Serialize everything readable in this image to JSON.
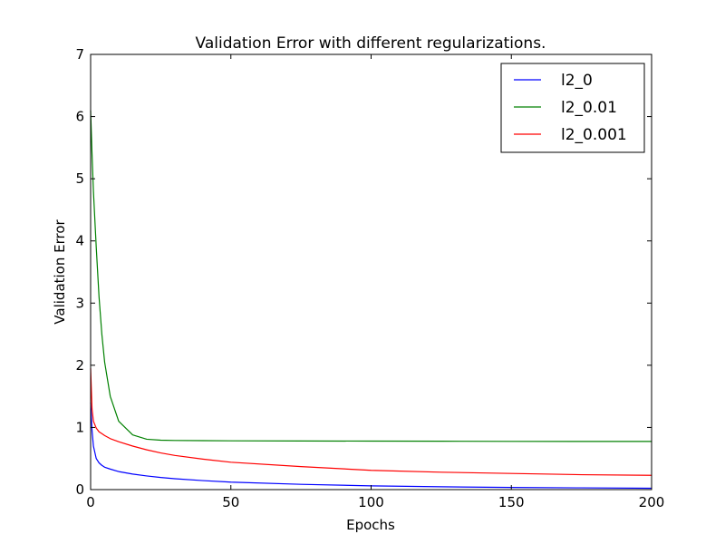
{
  "chart_data": {
    "type": "line",
    "title": "Validation Error with different regularizations.",
    "xlabel": "Epochs",
    "ylabel": "Validation Error",
    "xlim": [
      0,
      200
    ],
    "ylim": [
      0,
      7
    ],
    "xticks": [
      0,
      50,
      100,
      150,
      200
    ],
    "yticks": [
      0,
      1,
      2,
      3,
      4,
      5,
      6,
      7
    ],
    "grid": false,
    "legend_position": "top-right",
    "x": [
      0,
      0.5,
      1,
      2,
      3,
      4,
      5,
      7,
      10,
      15,
      20,
      25,
      30,
      40,
      50,
      75,
      100,
      125,
      150,
      175,
      200
    ],
    "series": [
      {
        "name": "l2_0",
        "color": "#0000ff",
        "values": [
          1.4,
          0.95,
          0.7,
          0.5,
          0.43,
          0.39,
          0.36,
          0.33,
          0.29,
          0.25,
          0.22,
          0.195,
          0.175,
          0.145,
          0.12,
          0.085,
          0.06,
          0.045,
          0.035,
          0.028,
          0.022
        ]
      },
      {
        "name": "l2_0.01",
        "color": "#008000",
        "values": [
          6.1,
          5.4,
          4.8,
          3.9,
          3.1,
          2.5,
          2.05,
          1.5,
          1.1,
          0.88,
          0.81,
          0.795,
          0.79,
          0.787,
          0.785,
          0.782,
          0.78,
          0.778,
          0.776,
          0.775,
          0.775
        ]
      },
      {
        "name": "l2_0.001",
        "color": "#ff0000",
        "values": [
          1.95,
          1.3,
          1.1,
          0.99,
          0.93,
          0.9,
          0.87,
          0.82,
          0.77,
          0.7,
          0.64,
          0.59,
          0.55,
          0.49,
          0.44,
          0.37,
          0.31,
          0.28,
          0.26,
          0.24,
          0.23
        ]
      }
    ]
  }
}
